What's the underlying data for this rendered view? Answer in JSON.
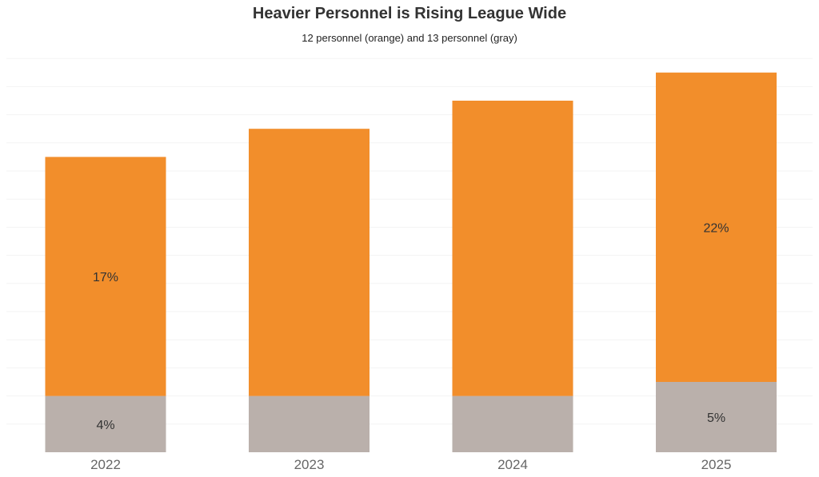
{
  "chart_data": {
    "type": "bar",
    "stacked": true,
    "title": "Heavier Personnel is Rising League Wide",
    "subtitle": "12 personnel (orange) and 13 personnel (gray)",
    "categories": [
      "2022",
      "2023",
      "2024",
      "2025"
    ],
    "series": [
      {
        "name": "13 personnel",
        "color": "#bab0ab",
        "values": [
          4,
          4,
          4,
          5
        ],
        "labels": [
          "4%",
          "",
          "",
          "5%"
        ]
      },
      {
        "name": "12 personnel",
        "color": "#f28e2b",
        "values": [
          17,
          19,
          21,
          22
        ],
        "labels": [
          "17%",
          "",
          "",
          "22%"
        ]
      }
    ],
    "ylim": [
      0,
      28
    ],
    "grid": true,
    "legend": "none"
  }
}
